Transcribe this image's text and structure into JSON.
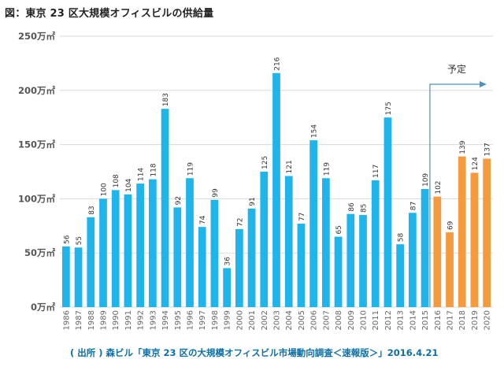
{
  "title": "図：東京 23 区大規模オフィスビルの供給量",
  "source": "( 出所 ) 森ビル「東京 23 区の大規模オフィスビル市場動向調査＜速報版＞」2016.4.21",
  "colors": {
    "actual": "#1fb4ea",
    "forecast": "#f59a3e",
    "grid": "#dadada",
    "axis_text": "#555555",
    "arrow": "#4a90c4"
  },
  "chart_data": {
    "type": "bar",
    "title": "東京 23 区大規模オフィスビルの供給量",
    "xlabel": "",
    "ylabel": "",
    "ylim": [
      0,
      250
    ],
    "yticks": [
      0,
      50,
      100,
      150,
      200,
      250
    ],
    "ytick_labels": [
      "0万㎡",
      "50万㎡",
      "100万㎡",
      "150万㎡",
      "200万㎡",
      "250万㎡"
    ],
    "categories": [
      "1986",
      "1987",
      "1988",
      "1989",
      "1990",
      "1991",
      "1992",
      "1993",
      "1994",
      "1995",
      "1996",
      "1997",
      "1998",
      "1999",
      "2000",
      "2001",
      "2002",
      "2003",
      "2004",
      "2005",
      "2006",
      "2007",
      "2008",
      "2009",
      "2010",
      "2011",
      "2012",
      "2013",
      "2014",
      "2015",
      "2016",
      "2017",
      "2018",
      "2019",
      "2020"
    ],
    "values": [
      56,
      55,
      83,
      100,
      108,
      104,
      114,
      118,
      183,
      92,
      119,
      74,
      99,
      36,
      72,
      91,
      125,
      216,
      121,
      77,
      154,
      119,
      65,
      86,
      85,
      117,
      175,
      58,
      87,
      109,
      102,
      69,
      139,
      124,
      137
    ],
    "forecast_start_index": 30,
    "forecast_label": "予定"
  }
}
